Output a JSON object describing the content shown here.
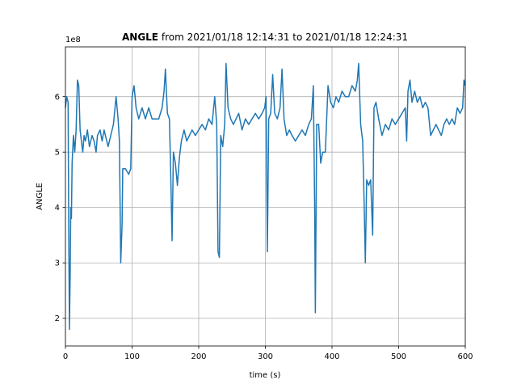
{
  "chart_data": {
    "type": "line",
    "title_bold": "ANGLE",
    "title_rest": "from 2021/01/18 12:14:31 to 2021/01/18 12:24:31",
    "y_offset_label": "1e8",
    "xlabel": "time (s)",
    "ylabel": "ANGLE",
    "xlim": [
      0,
      600
    ],
    "xticks": [
      0,
      100,
      200,
      300,
      400,
      500,
      600
    ],
    "ylim": [
      1.5,
      6.9
    ],
    "yticks": [
      2,
      3,
      4,
      5,
      6
    ],
    "grid": true,
    "x": [
      0,
      2,
      4,
      5,
      6,
      7,
      8,
      9,
      10,
      12,
      14,
      16,
      18,
      20,
      22,
      24,
      26,
      28,
      30,
      33,
      36,
      40,
      43,
      46,
      48,
      52,
      55,
      58,
      60,
      64,
      68,
      72,
      76,
      79,
      81,
      83,
      85,
      86,
      90,
      95,
      98,
      100,
      103,
      106,
      110,
      115,
      120,
      125,
      130,
      135,
      140,
      145,
      148,
      150,
      153,
      156,
      158,
      160,
      162,
      165,
      168,
      171,
      174,
      178,
      182,
      186,
      190,
      195,
      200,
      205,
      210,
      215,
      220,
      224,
      227,
      229,
      231,
      233,
      236,
      239,
      241,
      244,
      248,
      252,
      256,
      260,
      265,
      270,
      275,
      280,
      285,
      290,
      295,
      299,
      301,
      303,
      305,
      308,
      311,
      314,
      318,
      322,
      325,
      328,
      332,
      336,
      340,
      345,
      350,
      355,
      360,
      365,
      369,
      372,
      374,
      375,
      377,
      380,
      383,
      386,
      390,
      394,
      398,
      402,
      406,
      410,
      415,
      420,
      425,
      430,
      435,
      438,
      440,
      443,
      446,
      448,
      450,
      452,
      455,
      458,
      461,
      463,
      466,
      470,
      475,
      480,
      485,
      490,
      495,
      500,
      505,
      510,
      512,
      514,
      517,
      520,
      524,
      528,
      532,
      536,
      540,
      544,
      548,
      552,
      556,
      560,
      564,
      568,
      572,
      576,
      580,
      584,
      588,
      592,
      596,
      598,
      600
    ],
    "series": [
      {
        "name": "ANGLE",
        "color": "#1f77b4",
        "values": [
          5.8,
          6.0,
          5.9,
          3.5,
          1.8,
          2.7,
          4.0,
          3.8,
          4.8,
          5.3,
          5.0,
          5.4,
          6.3,
          6.2,
          5.4,
          5.2,
          5.0,
          5.3,
          5.2,
          5.4,
          5.1,
          5.3,
          5.2,
          5.0,
          5.3,
          5.4,
          5.2,
          5.4,
          5.3,
          5.1,
          5.3,
          5.5,
          6.0,
          5.6,
          5.2,
          3.0,
          3.7,
          4.7,
          4.7,
          4.6,
          4.7,
          6.0,
          6.2,
          5.8,
          5.6,
          5.8,
          5.6,
          5.8,
          5.6,
          5.6,
          5.6,
          5.8,
          6.1,
          6.5,
          5.7,
          5.6,
          4.6,
          3.4,
          5.0,
          4.8,
          4.4,
          4.9,
          5.2,
          5.4,
          5.2,
          5.3,
          5.4,
          5.3,
          5.4,
          5.5,
          5.4,
          5.6,
          5.5,
          6.0,
          5.5,
          3.2,
          3.1,
          5.3,
          5.1,
          5.5,
          6.6,
          5.8,
          5.6,
          5.5,
          5.6,
          5.7,
          5.4,
          5.6,
          5.5,
          5.6,
          5.7,
          5.6,
          5.7,
          5.8,
          6.0,
          3.2,
          5.6,
          5.7,
          6.4,
          5.7,
          5.6,
          5.8,
          6.5,
          5.6,
          5.3,
          5.4,
          5.3,
          5.2,
          5.3,
          5.4,
          5.3,
          5.5,
          5.6,
          6.2,
          4.0,
          2.1,
          5.5,
          5.5,
          4.8,
          5.0,
          5.0,
          6.2,
          5.9,
          5.8,
          6.0,
          5.9,
          6.1,
          6.0,
          6.0,
          6.2,
          6.1,
          6.3,
          6.6,
          5.5,
          5.2,
          4.2,
          3.0,
          4.5,
          4.4,
          4.5,
          3.5,
          5.8,
          5.9,
          5.6,
          5.3,
          5.5,
          5.4,
          5.6,
          5.5,
          5.6,
          5.7,
          5.8,
          5.2,
          6.1,
          6.3,
          5.9,
          6.1,
          5.9,
          6.0,
          5.8,
          5.9,
          5.8,
          5.3,
          5.4,
          5.5,
          5.4,
          5.3,
          5.5,
          5.6,
          5.5,
          5.6,
          5.5,
          5.8,
          5.7,
          5.8,
          6.3,
          6.2
        ]
      }
    ]
  }
}
